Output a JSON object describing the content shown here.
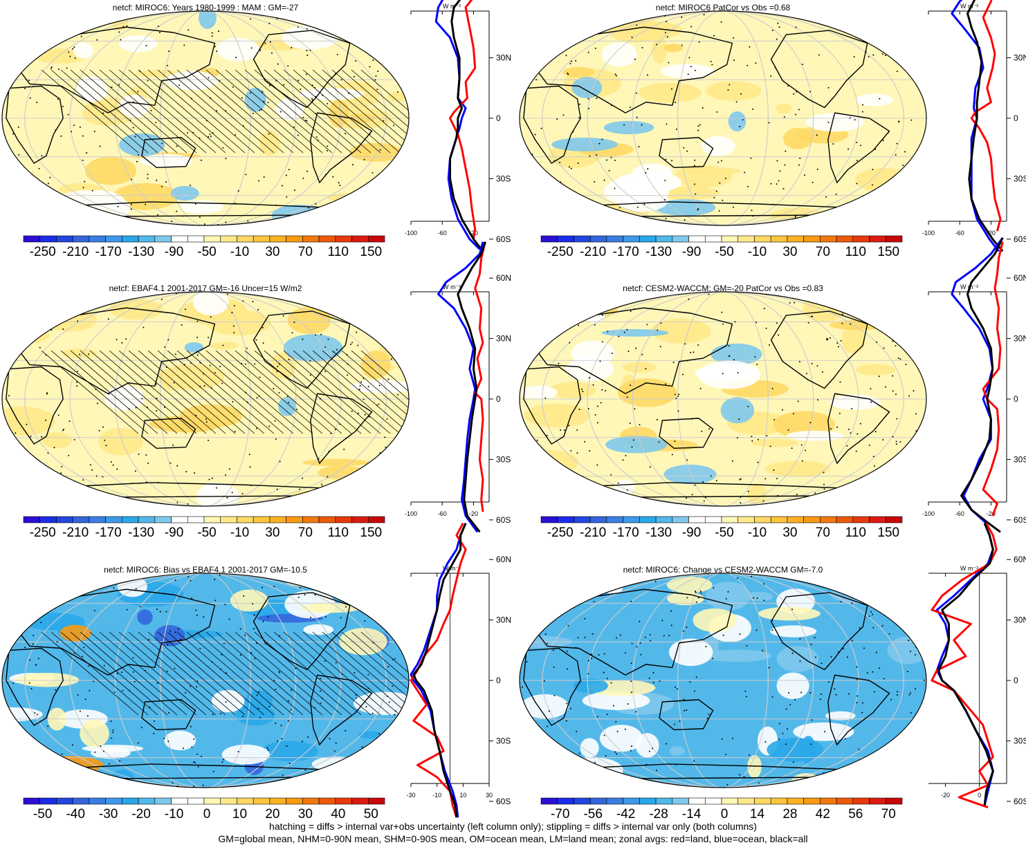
{
  "panels": [
    {
      "title": "netcf: MIROC6: Years 1980-1999 : MAM : GM=-27",
      "field": "clim",
      "hatch": true,
      "stipple": true,
      "colorbar": "a",
      "profile": "pA"
    },
    {
      "title": "netcf: MIROC6 PatCor vs Obs =0.68",
      "field": "clim2",
      "hatch": false,
      "stipple": true,
      "colorbar": "a",
      "profile": "pA"
    },
    {
      "title": "netcf: EBAF4.1 2001-2017 GM=-16 Uncer=15 W/m2",
      "field": "obs",
      "hatch": true,
      "stipple": true,
      "colorbar": "a",
      "profile": "pB"
    },
    {
      "title": "netcf: CESM2-WACCM: GM=-20 PatCor vs Obs =0.83",
      "field": "cesm",
      "hatch": false,
      "stipple": true,
      "colorbar": "a",
      "profile": "pC"
    },
    {
      "title": "netcf: MIROC6: Bias vs EBAF4.1 2001-2017 GM=-10.5",
      "field": "bias",
      "hatch": true,
      "stipple": true,
      "colorbar": "b",
      "profile": "pD"
    },
    {
      "title": "netcf: MIROC6: Change vs CESM2-WACCM GM=-7.0",
      "field": "change",
      "hatch": false,
      "stipple": true,
      "colorbar": "c",
      "profile": "pE"
    }
  ],
  "colorbars": {
    "a": {
      "labels": [
        "-250",
        "-210",
        "-170",
        "-130",
        "-90",
        "-50",
        "-10",
        "30",
        "70",
        "110",
        "150"
      ],
      "colors": [
        "#2a0fd6",
        "#1c2ce8",
        "#2446e0",
        "#3366dd",
        "#3a7fe4",
        "#3f99ea",
        "#2aa8ea",
        "#52b8ea",
        "#7fc8ec",
        "#ffffff",
        "#ffffff",
        "#fff7b8",
        "#ffe98a",
        "#fed966",
        "#fcc63e",
        "#fbb124",
        "#f89a14",
        "#f3790c",
        "#ee5a0a",
        "#e63a0c",
        "#dc1a10",
        "#c80808"
      ]
    },
    "b": {
      "labels": [
        "-50",
        "-40",
        "-30",
        "-20",
        "-10",
        "0",
        "10",
        "20",
        "30",
        "40",
        "50"
      ],
      "colors": [
        "#2a0fd6",
        "#1c2ce8",
        "#2446e0",
        "#3366dd",
        "#3a7fe4",
        "#3f99ea",
        "#2aa8ea",
        "#52b8ea",
        "#7fc8ec",
        "#ffffff",
        "#ffffff",
        "#fff7b8",
        "#ffe98a",
        "#fed966",
        "#fcc63e",
        "#fbb124",
        "#f89a14",
        "#f3790c",
        "#ee5a0a",
        "#e63a0c",
        "#dc1a10",
        "#c80808"
      ]
    },
    "c": {
      "labels": [
        "-70",
        "-56",
        "-42",
        "-28",
        "-14",
        "0",
        "14",
        "28",
        "42",
        "56",
        "70"
      ],
      "colors": [
        "#2a0fd6",
        "#1c2ce8",
        "#2446e0",
        "#3366dd",
        "#3a7fe4",
        "#3f99ea",
        "#2aa8ea",
        "#52b8ea",
        "#7fc8ec",
        "#ffffff",
        "#ffffff",
        "#fff7b8",
        "#ffe98a",
        "#fed966",
        "#fcc63e",
        "#fbb124",
        "#f89a14",
        "#f3790c",
        "#ee5a0a",
        "#e63a0c",
        "#dc1a10",
        "#c80808"
      ]
    }
  },
  "profile_axes": {
    "unit_label": "W m⁻²",
    "lat_ticks": [
      {
        "lat": 60,
        "label": "60N"
      },
      {
        "lat": 30,
        "label": "30N"
      },
      {
        "lat": 0,
        "label": "0"
      },
      {
        "lat": -30,
        "label": "30S"
      },
      {
        "lat": -60,
        "label": "60S"
      }
    ],
    "xaxes": {
      "a": {
        "ticks": [
          -100,
          -60,
          -20
        ],
        "range": [
          -100,
          0
        ],
        "zero_line": false
      },
      "b": {
        "ticks": [
          -30,
          -10,
          10,
          30
        ],
        "range": [
          -30,
          30
        ],
        "zero_line": true
      },
      "c": {
        "ticks": [
          -20,
          0
        ],
        "range": [
          -30,
          16
        ],
        "zero_line": true
      }
    }
  },
  "series_colors": {
    "land": "#ff0000",
    "ocean": "#0000ff",
    "all": "#000000"
  },
  "chart_data": [
    {
      "type": "line",
      "title": "",
      "xlabel": "W m⁻²",
      "ylabel": "",
      "xlim": [
        -100,
        0
      ],
      "ylim": [
        -70,
        80
      ],
      "series": [
        {
          "color": "#0000ff",
          "lat": [
            75,
            70,
            62,
            55,
            48,
            40,
            30,
            20,
            10,
            5,
            0,
            -5,
            -10,
            -20,
            -30,
            -40,
            -50,
            -60,
            -65
          ],
          "values": [
            -8,
            -15,
            -55,
            -65,
            -68,
            -50,
            -40,
            -38,
            -40,
            -30,
            -35,
            -38,
            -42,
            -50,
            -52,
            -48,
            -40,
            -25,
            -12
          ]
        },
        {
          "color": "#ff0000",
          "lat": [
            72,
            65,
            60,
            55,
            45,
            35,
            25,
            18,
            10,
            3,
            0,
            -8,
            -15,
            -25,
            -35,
            -45,
            -55,
            -60
          ],
          "values": [
            -10,
            -15,
            -20,
            -30,
            -25,
            -20,
            -18,
            -30,
            -28,
            -45,
            -50,
            -40,
            -35,
            -30,
            -25,
            -22,
            -18,
            -20
          ]
        },
        {
          "color": "#000000",
          "lat": [
            75,
            70,
            65,
            60,
            55,
            48,
            40,
            30,
            20,
            10,
            5,
            0,
            -5,
            -10,
            -20,
            -30,
            -40,
            -50,
            -60,
            -65
          ],
          "values": [
            -8,
            -15,
            -25,
            -35,
            -45,
            -48,
            -45,
            -38,
            -38,
            -40,
            -35,
            -40,
            -40,
            -42,
            -50,
            -50,
            -45,
            -35,
            -20,
            -10
          ]
        }
      ]
    },
    {
      "type": "line",
      "title": "",
      "xlabel": "W m⁻²",
      "ylabel": "",
      "xlim": [
        -100,
        0
      ],
      "ylim": [
        -70,
        80
      ],
      "series": [
        {
          "color": "#0000ff",
          "lat": [
            80,
            72,
            65,
            58,
            52,
            45,
            35,
            25,
            15,
            5,
            0,
            -10,
            -20,
            -30,
            -40,
            -50,
            -60,
            -66
          ],
          "values": [
            -10,
            -20,
            -40,
            -60,
            -70,
            -55,
            -35,
            -30,
            -40,
            -42,
            -38,
            -45,
            -45,
            -45,
            -45,
            -38,
            -22,
            -10
          ]
        },
        {
          "color": "#ff0000",
          "lat": [
            75,
            66,
            58,
            50,
            40,
            32,
            25,
            15,
            8,
            3,
            0,
            -5,
            -12,
            -20,
            -30,
            -40,
            -50,
            -56
          ],
          "values": [
            -5,
            -15,
            -20,
            -30,
            -20,
            -15,
            -18,
            -25,
            -20,
            -40,
            -45,
            -35,
            -25,
            -20,
            -18,
            -15,
            -8,
            -12
          ]
        },
        {
          "color": "#000000",
          "lat": [
            80,
            72,
            65,
            58,
            52,
            45,
            38,
            28,
            18,
            8,
            0,
            -10,
            -20,
            -30,
            -40,
            -50,
            -60,
            -66
          ],
          "values": [
            -10,
            -20,
            -32,
            -42,
            -50,
            -45,
            -38,
            -32,
            -35,
            -38,
            -38,
            -42,
            -45,
            -48,
            -45,
            -35,
            -18,
            -5
          ]
        }
      ]
    },
    {
      "type": "line",
      "title": "",
      "xlabel": "W m⁻²",
      "ylabel": "",
      "xlim": [
        -100,
        0
      ],
      "ylim": [
        -70,
        80
      ],
      "series": [
        {
          "color": "#0000ff",
          "lat": [
            78,
            72,
            65,
            58,
            52,
            45,
            35,
            25,
            15,
            5,
            0,
            -10,
            -20,
            -30,
            -40,
            -50,
            -58,
            -66
          ],
          "values": [
            -8,
            -12,
            -30,
            -55,
            -65,
            -45,
            -30,
            -20,
            -25,
            -18,
            -20,
            -25,
            -28,
            -30,
            -32,
            -35,
            -30,
            -15
          ]
        },
        {
          "color": "#ff0000",
          "lat": [
            78,
            70,
            62,
            55,
            45,
            35,
            28,
            20,
            10,
            3,
            0,
            -10,
            -20,
            -30,
            -40,
            -50,
            -56
          ],
          "values": [
            -5,
            -10,
            -12,
            -18,
            -10,
            -12,
            -8,
            -15,
            -10,
            -18,
            -10,
            -8,
            -10,
            -12,
            -8,
            -10,
            -8
          ]
        },
        {
          "color": "#000000",
          "lat": [
            78,
            72,
            65,
            58,
            52,
            45,
            35,
            25,
            15,
            5,
            0,
            -10,
            -20,
            -30,
            -40,
            -50,
            -58,
            -66
          ],
          "values": [
            -5,
            -10,
            -22,
            -32,
            -40,
            -35,
            -25,
            -18,
            -20,
            -16,
            -18,
            -22,
            -25,
            -28,
            -30,
            -32,
            -28,
            -12
          ]
        }
      ]
    },
    {
      "type": "line",
      "title": "",
      "xlabel": "W m⁻²",
      "ylabel": "",
      "xlim": [
        -100,
        0
      ],
      "ylim": [
        -70,
        80
      ],
      "series": [
        {
          "color": "#0000ff",
          "lat": [
            80,
            72,
            65,
            58,
            52,
            45,
            35,
            25,
            15,
            5,
            0,
            -10,
            -20,
            -30,
            -40,
            -48,
            -55,
            -62
          ],
          "values": [
            -5,
            -20,
            -40,
            -65,
            -70,
            -55,
            -35,
            -22,
            -18,
            -25,
            -30,
            -20,
            -20,
            -35,
            -45,
            -55,
            -45,
            -25
          ]
        },
        {
          "color": "#ff0000",
          "lat": [
            78,
            70,
            62,
            55,
            45,
            35,
            25,
            15,
            5,
            0,
            -5,
            -15,
            -25,
            -35,
            -45,
            -52,
            -58
          ],
          "values": [
            -5,
            -10,
            -12,
            -15,
            -10,
            -12,
            -8,
            -10,
            -30,
            -25,
            -12,
            -10,
            -12,
            -20,
            -30,
            -12,
            -18
          ]
        },
        {
          "color": "#000000",
          "lat": [
            80,
            72,
            65,
            58,
            52,
            45,
            35,
            25,
            15,
            5,
            0,
            -10,
            -20,
            -30,
            -40,
            -48,
            -55,
            -62,
            -66
          ],
          "values": [
            -5,
            -15,
            -30,
            -45,
            -50,
            -45,
            -30,
            -20,
            -18,
            -22,
            -25,
            -20,
            -22,
            -32,
            -45,
            -58,
            -45,
            -22,
            -8
          ]
        }
      ]
    },
    {
      "type": "line",
      "title": "",
      "xlabel": "W m⁻²",
      "ylabel": "",
      "xlim": [
        -30,
        30
      ],
      "ylim": [
        -70,
        80
      ],
      "series": [
        {
          "color": "#0000ff",
          "lat": [
            78,
            72,
            65,
            58,
            50,
            42,
            35,
            25,
            15,
            8,
            3,
            0,
            -5,
            -15,
            -25,
            -35,
            -45,
            -55,
            -62,
            -68
          ],
          "values": [
            12,
            8,
            5,
            -2,
            -8,
            -10,
            -10,
            -15,
            -20,
            -25,
            -30,
            -28,
            -22,
            -15,
            -12,
            -8,
            -4,
            2,
            5,
            6
          ]
        },
        {
          "color": "#ff0000",
          "lat": [
            78,
            72,
            65,
            58,
            50,
            42,
            35,
            28,
            20,
            12,
            5,
            0,
            -5,
            -12,
            -20,
            -28,
            -35,
            -42,
            -48,
            -55,
            -62,
            -68
          ],
          "values": [
            10,
            5,
            12,
            8,
            5,
            2,
            0,
            -5,
            -10,
            -20,
            -25,
            -30,
            -25,
            -18,
            -28,
            -10,
            -5,
            -25,
            -10,
            0,
            2,
            5
          ]
        },
        {
          "color": "#000000",
          "lat": [
            78,
            72,
            65,
            58,
            50,
            42,
            35,
            25,
            15,
            8,
            3,
            0,
            -5,
            -15,
            -25,
            -35,
            -45,
            -55,
            -62,
            -68
          ],
          "values": [
            12,
            8,
            8,
            2,
            -5,
            -8,
            -10,
            -14,
            -18,
            -22,
            -28,
            -26,
            -20,
            -14,
            -12,
            -8,
            -5,
            0,
            4,
            5
          ]
        }
      ]
    },
    {
      "type": "line",
      "title": "",
      "xlabel": "W m⁻²",
      "ylabel": "",
      "xlim": [
        -30,
        16
      ],
      "ylim": [
        -70,
        80
      ],
      "series": [
        {
          "color": "#0000ff",
          "lat": [
            78,
            72,
            65,
            58,
            50,
            42,
            35,
            28,
            20,
            12,
            5,
            0,
            -5,
            -15,
            -25,
            -35,
            -45,
            -55,
            -62
          ],
          "values": [
            3,
            6,
            8,
            5,
            -5,
            -15,
            -25,
            -20,
            -18,
            -22,
            -25,
            -22,
            -15,
            -8,
            -2,
            5,
            8,
            5,
            3
          ]
        },
        {
          "color": "#ff0000",
          "lat": [
            78,
            72,
            65,
            58,
            50,
            42,
            35,
            28,
            20,
            12,
            5,
            0,
            -5,
            -15,
            -22,
            -30,
            -38,
            -45,
            -52,
            -58,
            -63
          ],
          "values": [
            4,
            8,
            10,
            6,
            -10,
            -22,
            -28,
            -5,
            -15,
            -8,
            -25,
            -28,
            -15,
            -5,
            2,
            5,
            8,
            0,
            5,
            -12,
            5
          ]
        },
        {
          "color": "#000000",
          "lat": [
            78,
            72,
            65,
            58,
            50,
            42,
            35,
            28,
            20,
            12,
            5,
            0,
            -5,
            -15,
            -25,
            -35,
            -45,
            -55,
            -62
          ],
          "values": [
            3,
            6,
            8,
            6,
            -4,
            -12,
            -22,
            -18,
            -18,
            -20,
            -24,
            -22,
            -15,
            -8,
            -2,
            4,
            8,
            4,
            3
          ]
        }
      ]
    }
  ],
  "caption": {
    "line1": "hatching = diffs > internal var+obs uncertainty (left column only); stippling = diffs > internal var only (both columns)",
    "line2": "GM=global mean, NHM=0-90N mean, SHM=0-90S mean, OM=ocean mean, LM=land mean; zonal avgs: red=land, blue=ocean, black=all"
  }
}
